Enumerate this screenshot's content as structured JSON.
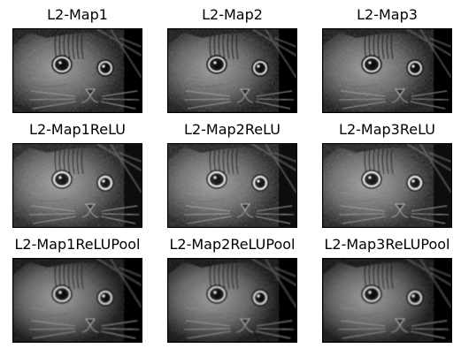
{
  "figure": {
    "panels": [
      {
        "title": "L2-Map1",
        "variant": "conv"
      },
      {
        "title": "L2-Map2",
        "variant": "conv"
      },
      {
        "title": "L2-Map3",
        "variant": "conv"
      },
      {
        "title": "L2-Map1ReLU",
        "variant": "relu"
      },
      {
        "title": "L2-Map2ReLU",
        "variant": "relu"
      },
      {
        "title": "L2-Map3ReLU",
        "variant": "relu"
      },
      {
        "title": "L2-Map1ReLUPool",
        "variant": "pool"
      },
      {
        "title": "L2-Map2ReLUPool",
        "variant": "pool"
      },
      {
        "title": "L2-Map3ReLUPool",
        "variant": "pool"
      }
    ],
    "colors": {
      "background": "#ffffff",
      "frame": "#000000",
      "image_dark": "#050505",
      "image_light": "#d8d8d8"
    }
  }
}
